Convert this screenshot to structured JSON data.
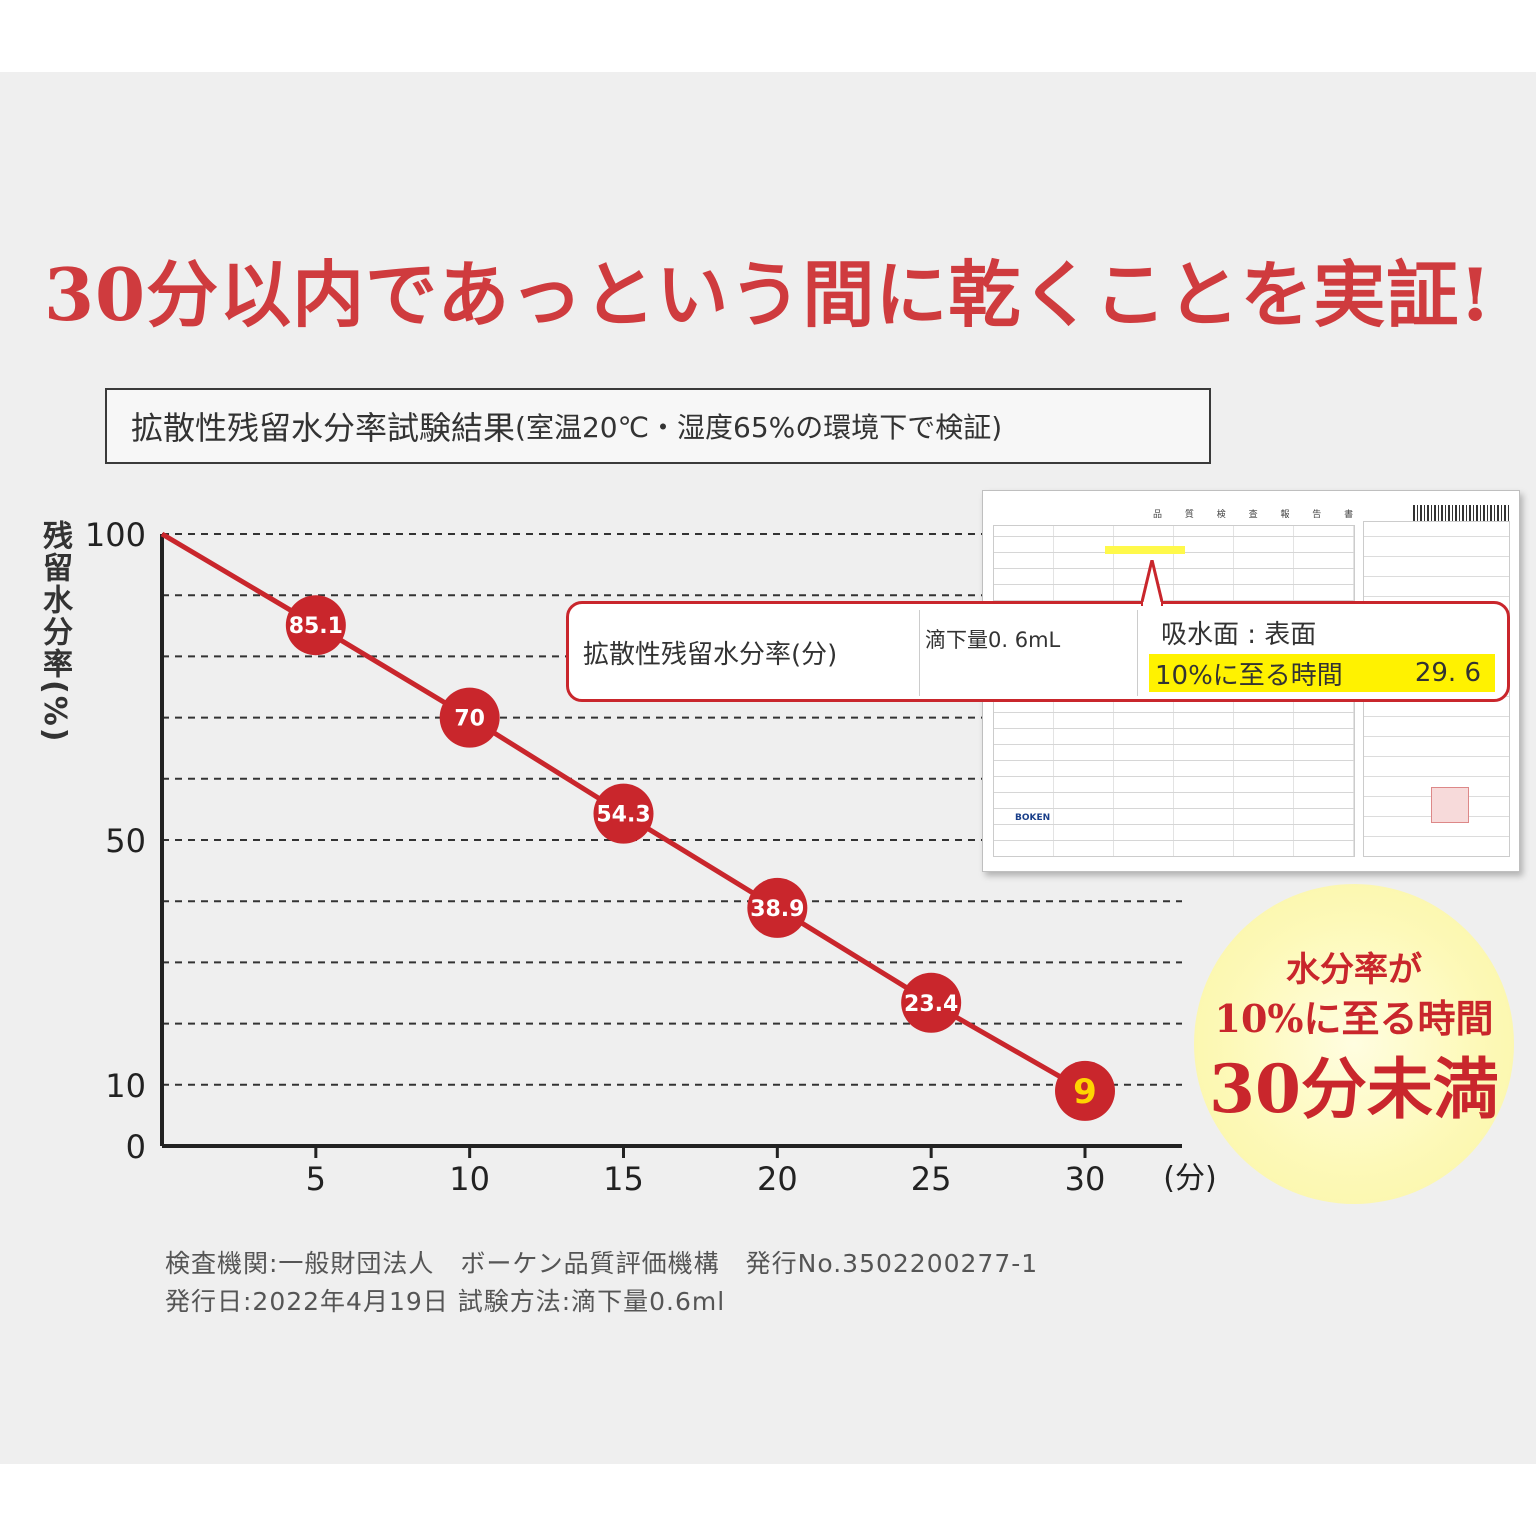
{
  "headline": "30分以内であっという間に乾くことを実証!",
  "subtitle": {
    "main": "拡散性残留水分率試験結果",
    "condition": "(室温20℃・湿度65%の環境下で検証)"
  },
  "chart_data": {
    "type": "line",
    "ylabel": "残留水分率(%)",
    "xunit": "(分)",
    "x": [
      0,
      5,
      10,
      15,
      20,
      25,
      30
    ],
    "values": [
      100,
      85.1,
      70,
      54.3,
      38.9,
      23.4,
      9
    ],
    "point_labels": [
      "",
      "85.1",
      "70",
      "54.3",
      "38.9",
      "23.4",
      "9"
    ],
    "xticks": [
      "5",
      "10",
      "15",
      "20",
      "25",
      "30"
    ],
    "yticks": [
      "100",
      "50",
      "10",
      "0"
    ],
    "ylim": [
      0,
      100
    ],
    "xlim": [
      0,
      33
    ],
    "grid": true,
    "line_color": "#c9262c",
    "last_label_color": "#ffd400"
  },
  "report": {
    "title": "品 質 検 査 報 告 書",
    "logo": "BOKEN"
  },
  "callout": {
    "label": "拡散性残留水分率(分)",
    "drop": "滴下量0. 6mL",
    "surface": "吸水面 : 表面",
    "time_label": "10%に至る時間",
    "time_value": "29. 6"
  },
  "badge": {
    "line1": "水分率が",
    "line2": "10%に至る時間",
    "line3": "30分未満"
  },
  "footer": {
    "line1": "検査機関:一般財団法人　ボーケン品質評価機構　発行No.3502200277-1",
    "line2": "発行日:2022年4月19日 試験方法:滴下量0.6ml"
  },
  "colors": {
    "accent": "#c9262c",
    "headline": "#cf3b3e",
    "highlight": "#fff200"
  }
}
